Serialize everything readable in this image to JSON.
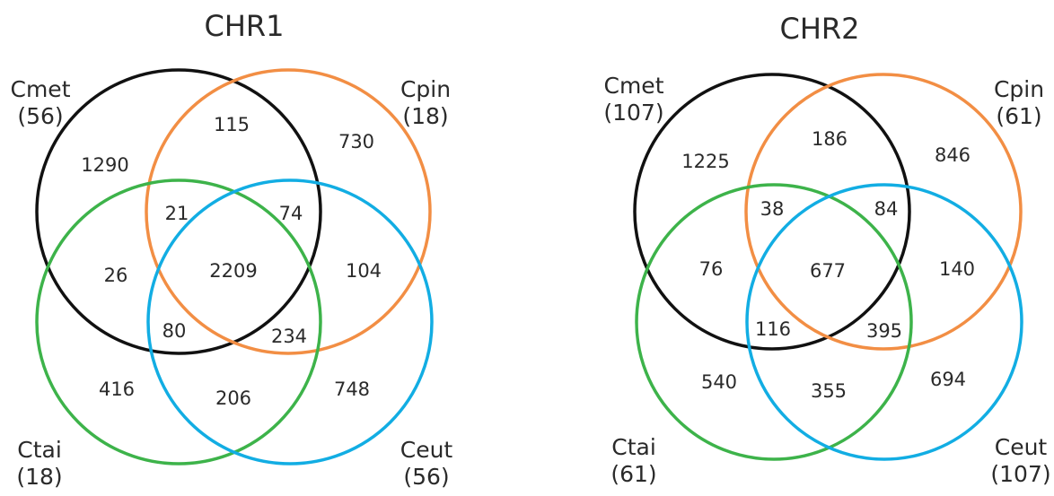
{
  "diagrams": [
    {
      "title": "CHR1",
      "sets": [
        {
          "name": "Cmet",
          "count": "(56)",
          "color": "#111111"
        },
        {
          "name": "Cpin",
          "count": "(18)",
          "color": "#f28e44"
        },
        {
          "name": "Ctai",
          "count": "(18)",
          "color": "#3db34a"
        },
        {
          "name": "Ceut",
          "count": "(56)",
          "color": "#12ade3"
        }
      ],
      "regions": {
        "cmet_only": "1290",
        "cmet_cpin": "115",
        "cpin_only": "730",
        "cmet_cpin_ctai": "21",
        "cmet_cpin_ceut": "74",
        "cmet_ctai": "26",
        "all": "2209",
        "cpin_ceut": "104",
        "cmet_ctai_ceut": "80",
        "cpin_ctai_ceut": "234",
        "ctai_only": "416",
        "ctai_ceut": "206",
        "ceut_only": "748"
      }
    },
    {
      "title": "CHR2",
      "sets": [
        {
          "name": "Cmet",
          "count": "(107)",
          "color": "#111111"
        },
        {
          "name": "Cpin",
          "count": "(61)",
          "color": "#f28e44"
        },
        {
          "name": "Ctai",
          "count": "(61)",
          "color": "#3db34a"
        },
        {
          "name": "Ceut",
          "count": "(107)",
          "color": "#12ade3"
        }
      ],
      "regions": {
        "cmet_only": "1225",
        "cmet_cpin": "186",
        "cpin_only": "846",
        "cmet_cpin_ctai": "38",
        "cmet_cpin_ceut": "84",
        "cmet_ctai": "76",
        "all": "677",
        "cpin_ceut": "140",
        "cmet_ctai_ceut": "116",
        "cpin_ctai_ceut": "395",
        "ctai_only": "540",
        "ctai_ceut": "355",
        "ceut_only": "694"
      }
    }
  ]
}
